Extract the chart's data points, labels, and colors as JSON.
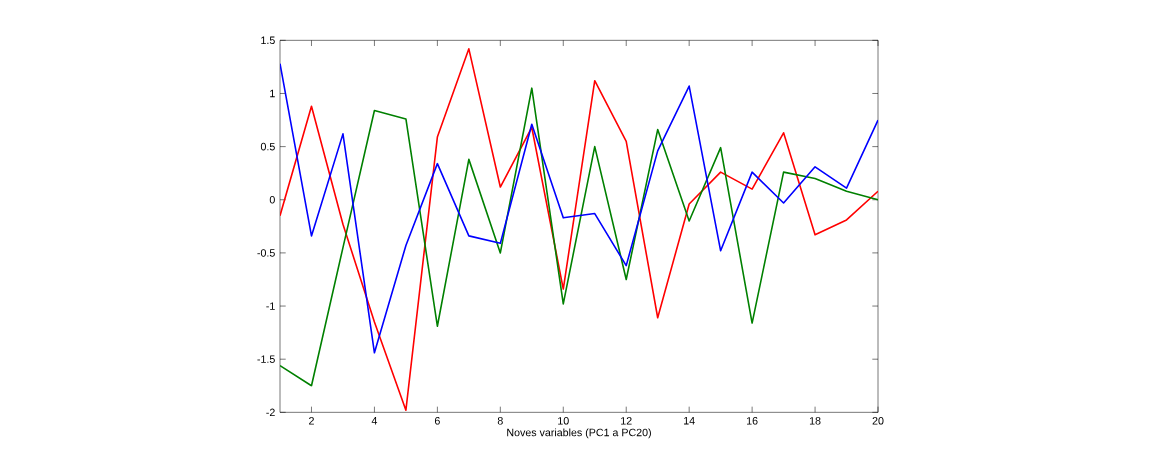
{
  "chart_data": {
    "type": "line",
    "xlabel": "Noves variables (PC1 a PC20)",
    "x": [
      1,
      2,
      3,
      4,
      5,
      6,
      7,
      8,
      9,
      10,
      11,
      12,
      13,
      14,
      15,
      16,
      17,
      18,
      19,
      20
    ],
    "series": [
      {
        "color": "#ff0000",
        "values": [
          -0.15,
          0.88,
          -0.23,
          -1.15,
          -1.98,
          0.59,
          1.42,
          0.12,
          0.68,
          -0.84,
          1.12,
          0.55,
          -1.11,
          -0.04,
          0.26,
          0.1,
          0.63,
          -0.33,
          -0.19,
          0.08
        ]
      },
      {
        "color": "#008000",
        "values": [
          -1.56,
          -1.75,
          -0.45,
          0.84,
          0.76,
          -1.19,
          0.38,
          -0.5,
          1.05,
          -0.98,
          0.5,
          -0.75,
          0.66,
          -0.2,
          0.49,
          -1.16,
          0.26,
          0.2,
          0.08,
          0.0
        ]
      },
      {
        "color": "#0000ff",
        "values": [
          1.28,
          -0.34,
          0.62,
          -1.44,
          -0.43,
          0.34,
          -0.34,
          -0.41,
          0.71,
          -0.17,
          -0.13,
          -0.62,
          0.46,
          1.07,
          -0.48,
          0.26,
          -0.03,
          0.31,
          0.11,
          0.75
        ]
      }
    ],
    "xlim": [
      1,
      20
    ],
    "ylim": [
      -2,
      1.5
    ],
    "xticks": [
      2,
      4,
      6,
      8,
      10,
      12,
      14,
      16,
      18,
      20
    ],
    "yticks": [
      -2,
      -1.5,
      -1,
      -0.5,
      0,
      0.5,
      1,
      1.5
    ],
    "grid": false,
    "line_style": "solid",
    "marker": "none"
  }
}
